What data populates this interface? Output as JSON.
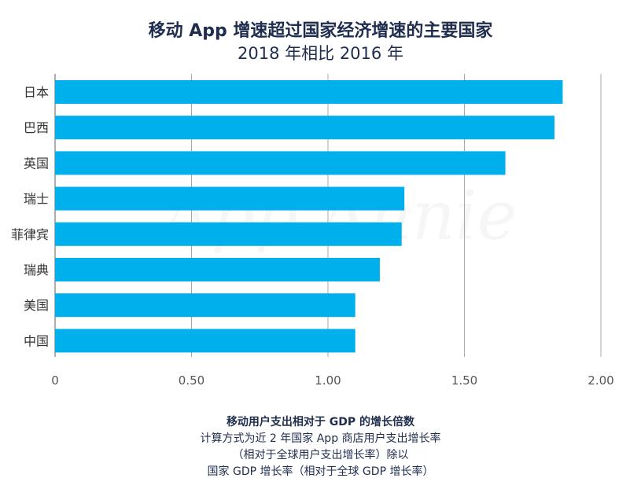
{
  "header": {
    "title": "移动 App 增速超过国家经济增速的主要国家",
    "subtitle": "2018 年相比 2016 年"
  },
  "footer": {
    "axis_title": "移动用户支出相对于 GDP 的增长倍数",
    "note_lines": [
      "计算方式为近 2 年国家 App 商店用户支出增长率",
      "（相对于全球用户支出增长率）除以",
      "国家 GDP 增长率（相对于全球 GDP 增长率）"
    ]
  },
  "watermark": {
    "text": "App Annie"
  },
  "chart_data": {
    "type": "bar",
    "orientation": "horizontal",
    "categories": [
      "日本",
      "巴西",
      "英国",
      "瑞士",
      "菲律宾",
      "瑞典",
      "美国",
      "中国"
    ],
    "values": [
      1.86,
      1.83,
      1.65,
      1.28,
      1.27,
      1.19,
      1.1,
      1.1
    ],
    "xlim": [
      0,
      2.0
    ],
    "ticks": [
      0,
      0.5,
      1.0,
      1.5,
      2.0
    ],
    "tick_labels": [
      "0",
      "0.50",
      "1.00",
      "1.50",
      "2.00"
    ],
    "grid": "vertical",
    "bar_color": "#00b0ec",
    "legend": "none"
  }
}
